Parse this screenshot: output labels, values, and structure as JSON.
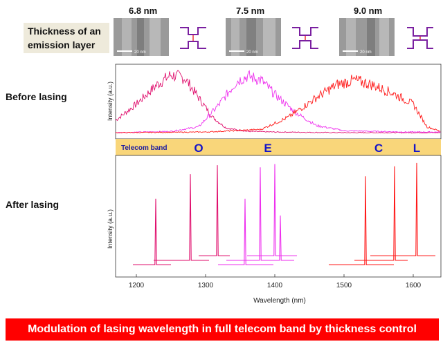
{
  "header": {
    "thickness_line1": "Thickness of an",
    "thickness_line2": "emission layer",
    "samples": [
      {
        "thickness": "6.8 nm",
        "scale_label": "20 nm"
      },
      {
        "thickness": "7.5 nm",
        "scale_label": "20 nm"
      },
      {
        "thickness": "9.0 nm",
        "scale_label": "20 nm"
      }
    ]
  },
  "labels": {
    "before": "Before  lasing",
    "after": "After lasing",
    "telecom": "Telecom band"
  },
  "bands": [
    {
      "name": "O",
      "x": 1290
    },
    {
      "name": "E",
      "x": 1390
    },
    {
      "name": "C",
      "x": 1550
    },
    {
      "name": "L",
      "x": 1605
    }
  ],
  "banner": "Modulation of lasing wavelength in full telecom band by thickness control",
  "colors": {
    "magenta_dark": "#e0106e",
    "magenta": "#ee30ee",
    "red": "#ff1a1a",
    "band": "#f9d67a",
    "banner": "#ff0000"
  },
  "chart_data": [
    {
      "type": "line",
      "panel": "before lasing",
      "ylabel": "Intensity (a.u.)",
      "x_range": [
        1170,
        1640
      ],
      "series": [
        {
          "color": "#e0106e",
          "x": [
            1170,
            1200,
            1230,
            1250,
            1270,
            1290,
            1310,
            1330,
            1360,
            1400,
            1500
          ],
          "y": [
            0.2,
            0.45,
            0.75,
            0.9,
            0.85,
            0.55,
            0.25,
            0.08,
            0.03,
            0.02,
            0.01
          ]
        },
        {
          "color": "#ee30ee",
          "x": [
            1170,
            1250,
            1290,
            1320,
            1345,
            1360,
            1380,
            1400,
            1430,
            1460,
            1500,
            1590
          ],
          "y": [
            0.01,
            0.03,
            0.1,
            0.45,
            0.8,
            0.88,
            0.82,
            0.6,
            0.32,
            0.12,
            0.04,
            0.02
          ]
        },
        {
          "color": "#ff1a1a",
          "x": [
            1170,
            1300,
            1380,
            1420,
            1460,
            1490,
            1515,
            1540,
            1570,
            1600,
            1620,
            1640
          ],
          "y": [
            0.01,
            0.02,
            0.06,
            0.25,
            0.55,
            0.75,
            0.82,
            0.75,
            0.62,
            0.45,
            0.1,
            0.03
          ]
        }
      ]
    },
    {
      "type": "line",
      "panel": "after lasing",
      "xlabel": "Wavelength (nm)",
      "ylabel": "Intensity (a.u.)",
      "xlim": [
        1170,
        1640
      ],
      "xticks": [
        1200,
        1300,
        1400,
        1500,
        1600
      ],
      "series": [
        {
          "color": "#e0106e",
          "x_range": [
            1195,
            1250
          ],
          "baseline": 0.06,
          "peaks": [
            {
              "x": 1228,
              "y": 0.65
            }
          ]
        },
        {
          "color": "#e0106e",
          "x_range": [
            1225,
            1305
          ],
          "baseline": 0.1,
          "peaks": [
            {
              "x": 1278,
              "y": 0.87
            }
          ]
        },
        {
          "color": "#e0106e",
          "x_range": [
            1290,
            1335
          ],
          "baseline": 0.14,
          "peaks": [
            {
              "x": 1317,
              "y": 0.95
            }
          ]
        },
        {
          "color": "#ee30ee",
          "x_range": [
            1318,
            1398
          ],
          "baseline": 0.06,
          "peaks": [
            {
              "x": 1357,
              "y": 0.65
            }
          ]
        },
        {
          "color": "#ee30ee",
          "x_range": [
            1330,
            1428
          ],
          "baseline": 0.1,
          "peaks": [
            {
              "x": 1379,
              "y": 0.93
            },
            {
              "x": 1408,
              "y": 0.5
            }
          ]
        },
        {
          "color": "#ee30ee",
          "x_range": [
            1360,
            1432
          ],
          "baseline": 0.14,
          "peaks": [
            {
              "x": 1400,
              "y": 0.96
            }
          ]
        },
        {
          "color": "#ff1a1a",
          "x_range": [
            1478,
            1572
          ],
          "baseline": 0.06,
          "peaks": [
            {
              "x": 1531,
              "y": 0.85
            }
          ]
        },
        {
          "color": "#ff1a1a",
          "x_range": [
            1515,
            1592
          ],
          "baseline": 0.1,
          "peaks": [
            {
              "x": 1573,
              "y": 0.94
            }
          ]
        },
        {
          "color": "#ff1a1a",
          "x_range": [
            1538,
            1632
          ],
          "baseline": 0.14,
          "peaks": [
            {
              "x": 1605,
              "y": 0.97
            }
          ]
        }
      ]
    }
  ]
}
